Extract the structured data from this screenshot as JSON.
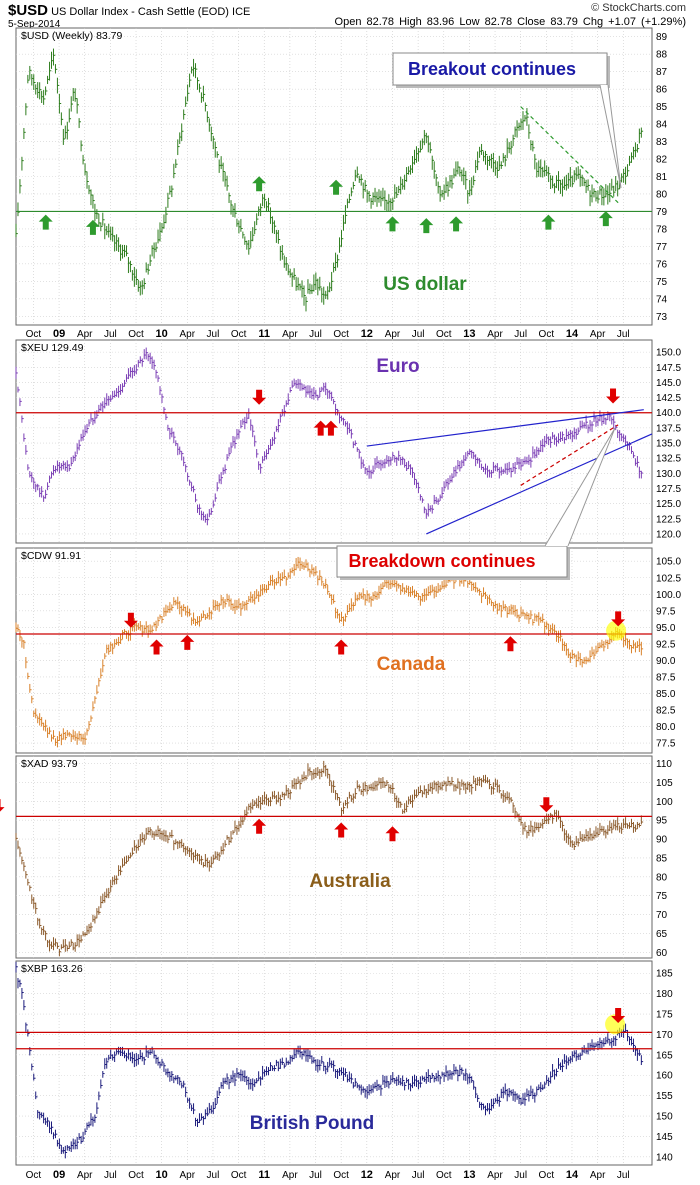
{
  "header": {
    "symbol": "$USD",
    "name": "US Dollar Index - Cash Settle (EOD)",
    "exchange": "ICE",
    "date": "5-Sep-2014",
    "ohlc": "Open 82.78  High 83.96  Low 82.78  Close 83.79  Chg +1.07 (+1.29%)",
    "watermark": "© StockCharts.com"
  },
  "x_axis_labels": [
    "Oct",
    "09",
    "Apr",
    "Jul",
    "Oct",
    "10",
    "Apr",
    "Jul",
    "Oct",
    "11",
    "Apr",
    "Jul",
    "Oct",
    "12",
    "Apr",
    "Jul",
    "Oct",
    "13",
    "Apr",
    "Jul",
    "Oct",
    "14",
    "Apr",
    "Jul"
  ],
  "chart_data": [
    {
      "type": "bar",
      "panel_label": "$USD (Weekly) 83.79",
      "annotation": "US dollar",
      "callout": "Breakout continues",
      "color": "#2e7d1e",
      "label_color": "#2e8b2e",
      "callout_color": "#1a1aa6",
      "line_color": "#2e8b2e",
      "ylim": [
        72.5,
        89.5
      ],
      "yticks": [
        73,
        74,
        75,
        76,
        77,
        78,
        79,
        80,
        81,
        82,
        83,
        84,
        85,
        86,
        87,
        88,
        89
      ],
      "hlines": [
        79
      ],
      "arrow_color": "#2e9b2e",
      "arrows_up": [
        [
          2008.87,
          78.3
        ],
        [
          2009.33,
          78
        ],
        [
          2010.95,
          80.5
        ],
        [
          2011.7,
          80.3
        ],
        [
          2012.25,
          78.2
        ],
        [
          2012.58,
          78.1
        ],
        [
          2012.87,
          78.2
        ],
        [
          2013.77,
          78.3
        ],
        [
          2014.33,
          78.5
        ]
      ],
      "arrows_down": [],
      "trendlines": [
        {
          "points": [
            [
              2013.5,
              85.0
            ],
            [
              2014.45,
              79.5
            ]
          ],
          "color": "#2e9b2e",
          "dashed": true
        }
      ],
      "x": [
        2008.58,
        2008.7,
        2008.85,
        2008.95,
        2009.05,
        2009.15,
        2009.25,
        2009.35,
        2009.5,
        2009.65,
        2009.8,
        2009.9,
        2010.0,
        2010.1,
        2010.2,
        2010.3,
        2010.43,
        2010.55,
        2010.7,
        2010.85,
        2011.0,
        2011.1,
        2011.2,
        2011.3,
        2011.4,
        2011.5,
        2011.6,
        2011.7,
        2011.8,
        2011.9,
        2012.0,
        2012.15,
        2012.3,
        2012.45,
        2012.58,
        2012.7,
        2012.8,
        2012.9,
        2013.0,
        2013.1,
        2013.2,
        2013.3,
        2013.45,
        2013.55,
        2013.65,
        2013.75,
        2013.85,
        2013.95,
        2014.05,
        2014.2,
        2014.35,
        2014.45,
        2014.55,
        2014.62,
        2014.68
      ],
      "y": [
        77.5,
        87.0,
        85.5,
        88.0,
        83.0,
        86.0,
        81.5,
        79.0,
        77.5,
        76.5,
        74.5,
        76.5,
        78.0,
        80.5,
        84.0,
        87.5,
        85.0,
        82.0,
        79.0,
        77.0,
        80.0,
        78.0,
        76.0,
        75.0,
        74.0,
        75.0,
        74.0,
        76.0,
        79.0,
        81.5,
        80.0,
        79.5,
        80.0,
        82.0,
        83.5,
        80.0,
        80.5,
        81.5,
        80.0,
        82.5,
        82.0,
        81.5,
        83.5,
        84.5,
        81.5,
        81.0,
        80.5,
        80.5,
        81.0,
        80.0,
        80.0,
        80.5,
        81.5,
        82.5,
        83.8
      ]
    },
    {
      "type": "bar",
      "panel_label": "$XEU 129.49",
      "annotation": "Euro",
      "color": "#7b3fb5",
      "label_color": "#6a32b0",
      "line_color": "#cc0000",
      "ylim": [
        118.5,
        152
      ],
      "yticks": [
        120.0,
        122.5,
        125.0,
        127.5,
        130.0,
        132.5,
        135.0,
        137.5,
        140.0,
        142.5,
        145.0,
        147.5,
        150.0
      ],
      "hlines": [
        140
      ],
      "arrow_color": "#e00000",
      "arrows_up": [
        [
          2011.55,
          137.2
        ],
        [
          2011.65,
          137.2
        ]
      ],
      "arrows_down": [
        [
          2010.95,
          142.8
        ],
        [
          2014.4,
          143.0
        ]
      ],
      "trendlines": [
        {
          "points": [
            [
              2012.0,
              134.5
            ],
            [
              2014.7,
              140.5
            ]
          ],
          "color": "#2222cc",
          "dashed": false
        },
        {
          "points": [
            [
              2012.58,
              120.0
            ],
            [
              2014.85,
              136.5
            ]
          ],
          "color": "#2222cc",
          "dashed": false
        },
        {
          "points": [
            [
              2013.5,
              128.0
            ],
            [
              2014.45,
              138.0
            ]
          ],
          "color": "#cc0000",
          "dashed": true
        }
      ],
      "x": [
        2008.58,
        2008.7,
        2008.85,
        2008.95,
        2009.1,
        2009.25,
        2009.4,
        2009.55,
        2009.7,
        2009.85,
        2009.95,
        2010.05,
        2010.2,
        2010.35,
        2010.45,
        2010.55,
        2010.7,
        2010.85,
        2010.95,
        2011.05,
        2011.2,
        2011.3,
        2011.4,
        2011.5,
        2011.6,
        2011.7,
        2011.85,
        2012.0,
        2012.15,
        2012.3,
        2012.45,
        2012.58,
        2012.7,
        2012.85,
        2013.0,
        2013.15,
        2013.3,
        2013.45,
        2013.6,
        2013.75,
        2013.9,
        2014.05,
        2014.2,
        2014.35,
        2014.5,
        2014.6,
        2014.68
      ],
      "y": [
        147.0,
        130.0,
        126.0,
        131.0,
        131.0,
        137.0,
        141.0,
        143.0,
        146.5,
        149.5,
        147.0,
        138.0,
        133.0,
        124.5,
        122.0,
        128.0,
        135.0,
        140.0,
        131.0,
        134.0,
        141.0,
        145.0,
        143.5,
        142.5,
        144.0,
        140.5,
        136.0,
        130.0,
        132.0,
        133.0,
        130.0,
        123.0,
        126.0,
        130.0,
        133.5,
        130.5,
        130.5,
        131.0,
        132.5,
        135.5,
        136.0,
        137.0,
        138.5,
        139.5,
        136.0,
        133.0,
        129.5
      ]
    },
    {
      "type": "bar",
      "panel_label": "$CDW 91.91",
      "annotation": "Canada",
      "callout": "Breakdown continues",
      "color": "#d9822b",
      "label_color": "#e07020",
      "callout_color": "#dd0000",
      "line_color": "#cc0000",
      "ylim": [
        76,
        107
      ],
      "yticks": [
        77.5,
        80.0,
        82.5,
        85.0,
        87.5,
        90.0,
        92.5,
        95.0,
        97.5,
        100.0,
        102.5,
        105.0
      ],
      "hlines": [
        94
      ],
      "arrow_color": "#e00000",
      "arrows_up": [
        [
          2009.95,
          91.8
        ],
        [
          2010.25,
          92.5
        ],
        [
          2011.75,
          91.8
        ],
        [
          2013.4,
          92.3
        ]
      ],
      "arrows_down": [
        [
          2009.7,
          96.3
        ],
        [
          2014.45,
          96.5
        ]
      ],
      "highlights": [
        [
          2014.43,
          94.5
        ]
      ],
      "trendlines": [],
      "x": [
        2008.58,
        2008.65,
        2008.75,
        2008.85,
        2008.95,
        2009.1,
        2009.25,
        2009.35,
        2009.45,
        2009.6,
        2009.75,
        2009.9,
        2010.0,
        2010.15,
        2010.3,
        2010.45,
        2010.6,
        2010.75,
        2010.9,
        2011.05,
        2011.2,
        2011.35,
        2011.5,
        2011.6,
        2011.75,
        2011.9,
        2012.05,
        2012.2,
        2012.35,
        2012.5,
        2012.65,
        2012.8,
        2012.95,
        2013.1,
        2013.25,
        2013.4,
        2013.55,
        2013.7,
        2013.85,
        2014.0,
        2014.1,
        2014.2,
        2014.3,
        2014.4,
        2014.5,
        2014.6,
        2014.68
      ],
      "y": [
        95.0,
        93.0,
        82.0,
        80.0,
        78.0,
        79.0,
        78.0,
        84.0,
        91.0,
        93.5,
        95.0,
        94.5,
        96.5,
        99.0,
        96.0,
        97.0,
        99.0,
        98.0,
        99.5,
        101.5,
        102.5,
        105.0,
        103.0,
        101.0,
        96.0,
        99.5,
        99.5,
        102.0,
        101.0,
        99.5,
        100.5,
        102.0,
        102.5,
        100.5,
        98.0,
        97.5,
        96.5,
        96.0,
        94.0,
        90.5,
        89.5,
        91.0,
        92.0,
        94.0,
        93.5,
        92.0,
        91.9
      ]
    },
    {
      "type": "bar",
      "panel_label": "$XAD 93.79",
      "annotation": "Australia",
      "color": "#8b5a2b",
      "label_color": "#8b5e1a",
      "line_color": "#cc0000",
      "ylim": [
        58.5,
        112
      ],
      "yticks": [
        60,
        65,
        70,
        75,
        80,
        85,
        90,
        95,
        100,
        105,
        110
      ],
      "hlines": [
        96
      ],
      "arrow_color": "#e00000",
      "arrows_up": [
        [
          2010.95,
          93.0
        ],
        [
          2011.75,
          92.0
        ],
        [
          2012.25,
          91.0
        ]
      ],
      "arrows_down": [
        [
          2008.4,
          99.0
        ],
        [
          2013.75,
          99.5
        ]
      ],
      "trendlines": [],
      "x": [
        2008.58,
        2008.68,
        2008.8,
        2008.9,
        2009.0,
        2009.15,
        2009.3,
        2009.45,
        2009.6,
        2009.75,
        2009.9,
        2010.05,
        2010.2,
        2010.35,
        2010.45,
        2010.55,
        2010.7,
        2010.85,
        2011.0,
        2011.15,
        2011.3,
        2011.45,
        2011.6,
        2011.75,
        2011.9,
        2012.05,
        2012.2,
        2012.35,
        2012.5,
        2012.65,
        2012.8,
        2012.95,
        2013.1,
        2013.25,
        2013.4,
        2013.55,
        2013.7,
        2013.85,
        2014.0,
        2014.15,
        2014.3,
        2014.45,
        2014.6,
        2014.68
      ],
      "y": [
        90.0,
        80.0,
        68.0,
        63.0,
        61.0,
        62.0,
        66.0,
        75.0,
        82.0,
        88.0,
        92.0,
        91.0,
        88.0,
        85.0,
        83.0,
        86.0,
        92.0,
        98.0,
        100.0,
        101.0,
        104.0,
        108.0,
        108.5,
        98.0,
        103.0,
        104.0,
        105.0,
        98.0,
        102.5,
        104.0,
        104.5,
        104.0,
        105.0,
        104.0,
        100.0,
        92.0,
        94.0,
        96.5,
        88.0,
        90.5,
        92.0,
        93.5,
        93.5,
        93.8
      ]
    },
    {
      "type": "bar",
      "panel_label": "$XBP 163.26",
      "annotation": "British Pound",
      "color": "#1c1c7c",
      "label_color": "#2a2a9a",
      "line_color": "#cc0000",
      "ylim": [
        138,
        188
      ],
      "yticks": [
        140,
        145,
        150,
        155,
        160,
        165,
        170,
        175,
        180,
        185
      ],
      "hlines": [
        170.5,
        166.5
      ],
      "arrow_color": "#e00000",
      "arrows_up": [],
      "arrows_down": [
        [
          2014.45,
          175.0
        ]
      ],
      "highlights": [
        [
          2014.42,
          172.5
        ]
      ],
      "trendlines": [],
      "x": [
        2008.58,
        2008.65,
        2008.72,
        2008.8,
        2008.9,
        2009.05,
        2009.2,
        2009.35,
        2009.45,
        2009.6,
        2009.75,
        2009.9,
        2010.05,
        2010.2,
        2010.35,
        2010.5,
        2010.6,
        2010.75,
        2010.9,
        2011.05,
        2011.2,
        2011.35,
        2011.5,
        2011.65,
        2011.8,
        2011.95,
        2012.1,
        2012.25,
        2012.4,
        2012.55,
        2012.7,
        2012.85,
        2013.0,
        2013.1,
        2013.2,
        2013.35,
        2013.5,
        2013.65,
        2013.8,
        2013.95,
        2014.1,
        2014.25,
        2014.4,
        2014.5,
        2014.6,
        2014.68
      ],
      "y": [
        186.0,
        178.0,
        165.0,
        150.0,
        148.0,
        141.0,
        144.0,
        150.0,
        163.0,
        166.0,
        163.0,
        166.0,
        161.0,
        158.0,
        148.0,
        152.0,
        158.0,
        160.0,
        158.0,
        162.0,
        163.0,
        166.0,
        163.0,
        162.0,
        160.0,
        156.0,
        157.0,
        159.0,
        158.0,
        159.0,
        160.0,
        161.0,
        160.0,
        153.0,
        152.0,
        156.0,
        154.0,
        156.0,
        160.0,
        164.0,
        166.0,
        167.0,
        169.0,
        171.0,
        167.0,
        163.3
      ]
    }
  ]
}
